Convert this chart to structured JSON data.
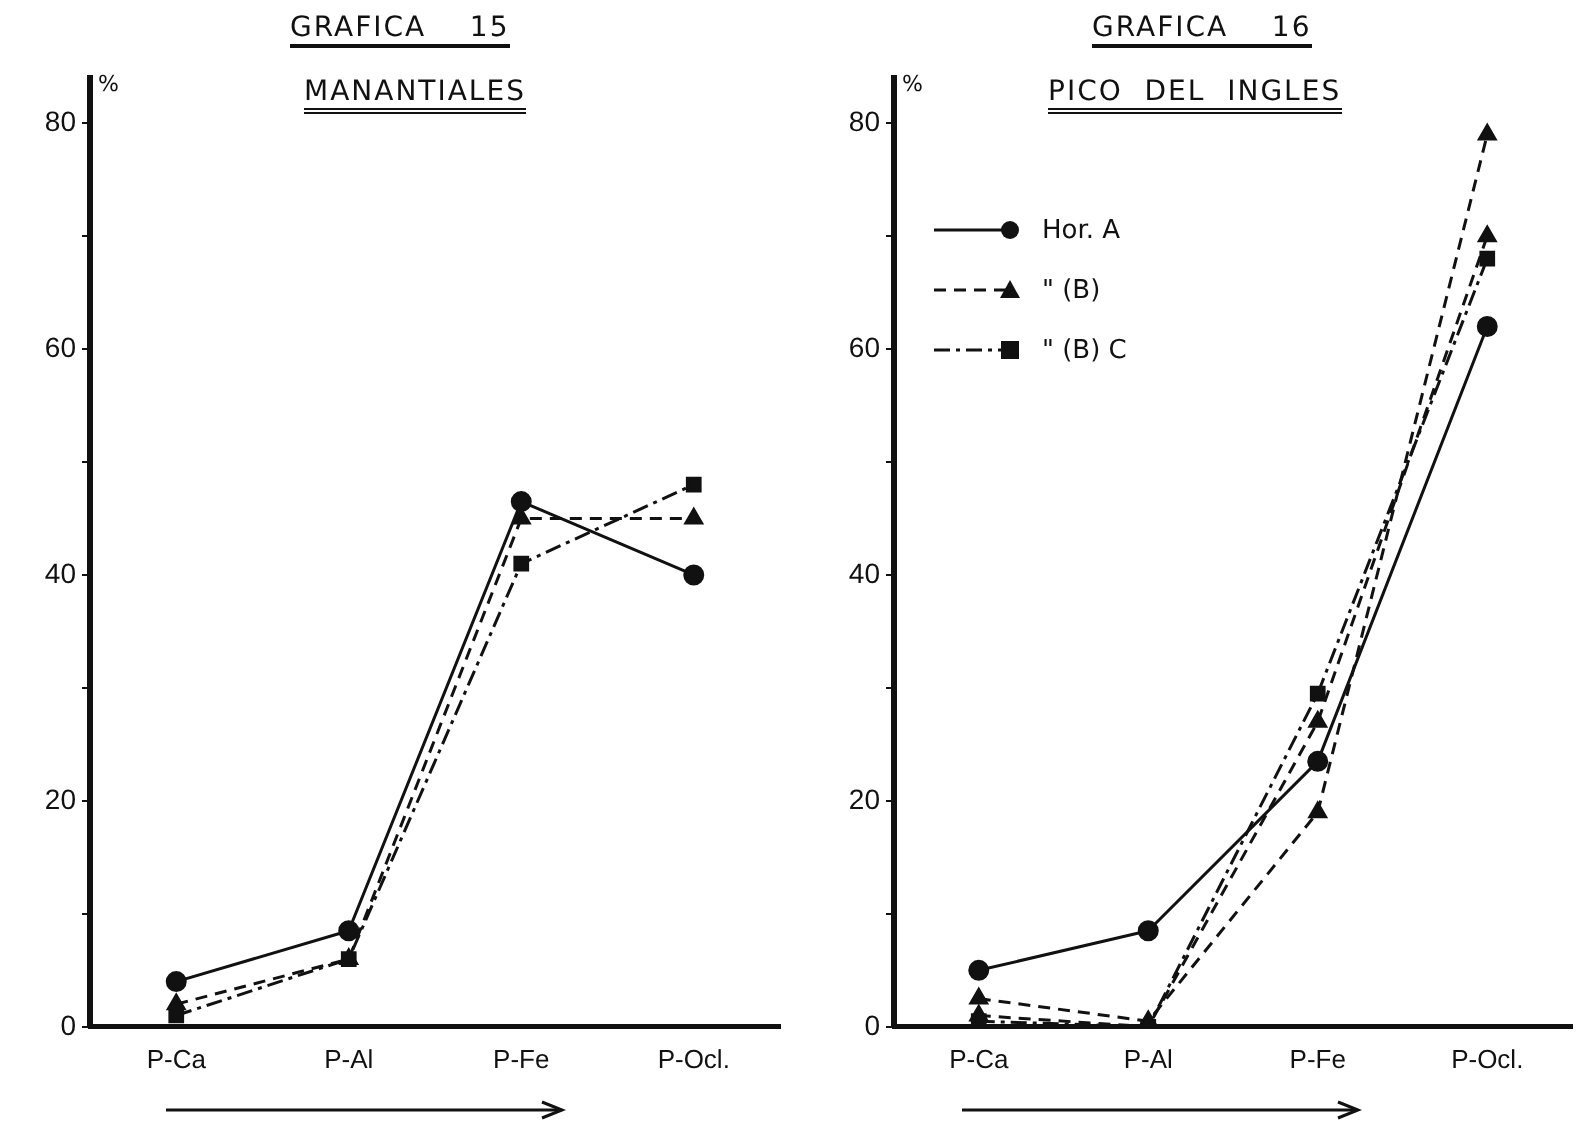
{
  "chart_data": [
    {
      "type": "line",
      "title": "GRAFICA    15",
      "subtitle": "MANANTIALES",
      "ylabel": "%",
      "categories": [
        "P-Ca",
        "P-Al",
        "P-Fe",
        "P-Ocl."
      ],
      "ylim": [
        0,
        84
      ],
      "yticks": [
        0,
        {
          "value": 10,
          "label": null
        },
        20,
        {
          "value": 30,
          "label": null
        },
        40,
        {
          "value": 50,
          "label": null
        },
        60,
        {
          "value": 70,
          "label": null
        },
        80
      ],
      "grid": false,
      "legend": false,
      "series": [
        {
          "color": "#111111",
          "marker": "circle",
          "line_style": "solid",
          "values": [
            4,
            8.5,
            46.5,
            40
          ]
        },
        {
          "color": "#111111",
          "marker": "triangle",
          "line_style": "dashed",
          "values": [
            2,
            6,
            45,
            45
          ]
        },
        {
          "color": "#111111",
          "marker": "square",
          "line_style": "dashdot",
          "values": [
            1,
            6,
            41,
            48
          ]
        }
      ]
    },
    {
      "type": "line",
      "title": "GRAFICA    16",
      "subtitle": "PICO  DEL  INGLES",
      "ylabel": "%",
      "categories": [
        "P-Ca",
        "P-Al",
        "P-Fe",
        "P-Ocl."
      ],
      "ylim": [
        0,
        84
      ],
      "yticks": [
        0,
        {
          "value": 10,
          "label": null
        },
        20,
        {
          "value": 30,
          "label": null
        },
        40,
        {
          "value": 50,
          "label": null
        },
        60,
        {
          "value": 70,
          "label": null
        },
        80
      ],
      "grid": false,
      "legend": "top left",
      "series": [
        {
          "name": "Hor. A",
          "color": "#111111",
          "marker": "circle",
          "line_style": "solid",
          "values": [
            5,
            8.5,
            23.5,
            62
          ]
        },
        {
          "name": "\" (B)",
          "color": "#111111",
          "marker": "triangle",
          "line_style": "dashed",
          "values": [
            2.5,
            0.5,
            19,
            79
          ]
        },
        {
          "name": "\" (B) C",
          "color": "#111111",
          "marker": "square",
          "line_style": "dashdot",
          "values": [
            0.5,
            0,
            29.5,
            68
          ]
        },
        {
          "color": "#111111",
          "marker": "triangle",
          "line_style": "dashed",
          "values": [
            1,
            0,
            27,
            70
          ]
        }
      ]
    }
  ]
}
